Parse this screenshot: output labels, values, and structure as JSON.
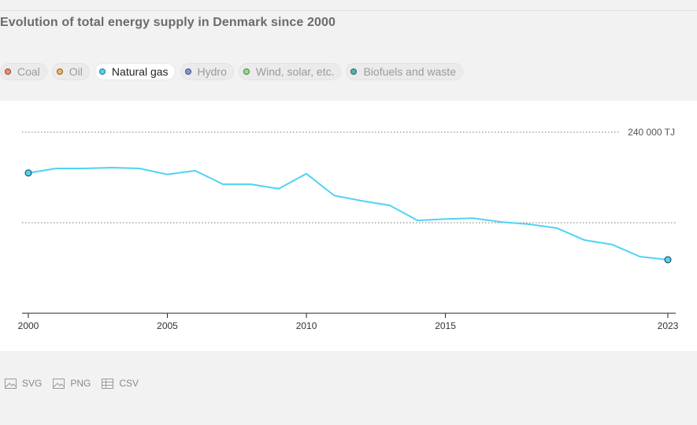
{
  "title": "Evolution of total energy supply in Denmark since 2000",
  "legend": [
    {
      "label": "Coal",
      "color": "#f28b6e",
      "active": false
    },
    {
      "label": "Oil",
      "color": "#f2b45c",
      "active": false
    },
    {
      "label": "Natural gas",
      "color": "#4fd3f5",
      "active": true
    },
    {
      "label": "Hydro",
      "color": "#7f96d6",
      "active": false
    },
    {
      "label": "Wind, solar, etc.",
      "color": "#8de08a",
      "active": false
    },
    {
      "label": "Biofuels and waste",
      "color": "#4fb8a8",
      "active": false
    }
  ],
  "downloads": {
    "svg": "SVG",
    "png": "PNG",
    "csv": "CSV"
  },
  "chart_data": {
    "type": "line",
    "title": "Evolution of total energy supply in Denmark since 2000",
    "series": [
      {
        "name": "Natural gas",
        "color": "#4fd3f5",
        "x": [
          2000,
          2001,
          2002,
          2003,
          2004,
          2005,
          2006,
          2007,
          2008,
          2009,
          2010,
          2011,
          2012,
          2013,
          2014,
          2015,
          2016,
          2017,
          2018,
          2019,
          2020,
          2021,
          2022,
          2023
        ],
        "values": [
          186000,
          192000,
          192000,
          193000,
          192000,
          184000,
          189000,
          171000,
          171000,
          165000,
          185000,
          156000,
          149000,
          143000,
          123000,
          125000,
          126000,
          121000,
          118000,
          113000,
          97000,
          91000,
          75000,
          71000
        ]
      }
    ],
    "xticks": [
      "2000",
      "2005",
      "2010",
      "2015",
      "2023"
    ],
    "ylim": [
      0,
      240000
    ],
    "reference_line": {
      "value": 240000,
      "label": "240 000 TJ"
    },
    "grid": "dotted",
    "legend_position": "top"
  }
}
